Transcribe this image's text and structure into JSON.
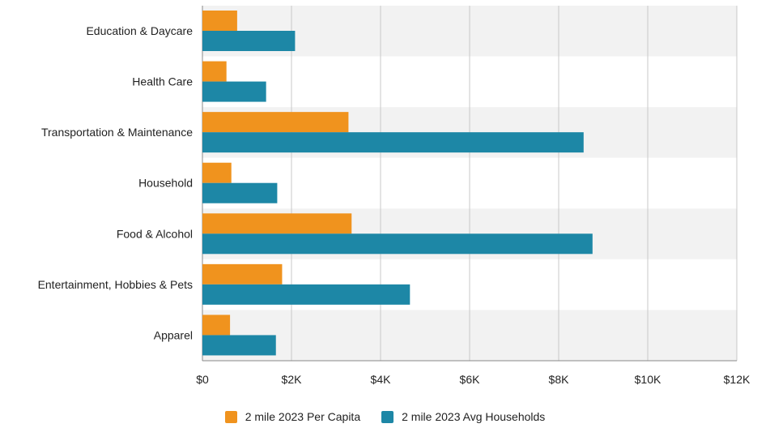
{
  "chart_data": {
    "type": "bar",
    "orientation": "horizontal",
    "categories": [
      "Education & Daycare",
      "Health Care",
      "Transportation & Maintenance",
      "Household",
      "Food & Alcohol",
      "Entertainment, Hobbies & Pets",
      "Apparel"
    ],
    "series": [
      {
        "name": "2 mile 2023 Per Capita",
        "color": "#f0931e",
        "values": [
          780,
          540,
          3280,
          650,
          3350,
          1790,
          620
        ]
      },
      {
        "name": "2 mile 2023 Avg Households",
        "color": "#1d87a6",
        "values": [
          2080,
          1430,
          8560,
          1680,
          8760,
          4660,
          1650
        ]
      }
    ],
    "xlim": [
      0,
      12000
    ],
    "x_ticks": [
      0,
      2000,
      4000,
      6000,
      8000,
      10000,
      12000
    ],
    "x_tick_labels": [
      "$0",
      "$2K",
      "$4K",
      "$6K",
      "$8K",
      "$10K",
      "$12K"
    ],
    "grid": true,
    "band_colors": [
      "#f2f2f2",
      "#ffffff"
    ],
    "legend_position": "bottom"
  }
}
